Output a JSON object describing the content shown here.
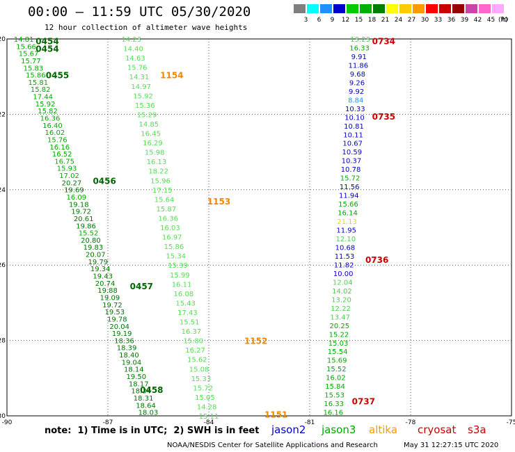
{
  "header": {
    "title": "00:00 – 11:59 UTC 05/30/2020",
    "subtitle": "12 hour collection of altimeter wave heights"
  },
  "scale": {
    "unit": "(ft)",
    "bins": [
      {
        "label": "3",
        "color": "#7f7f7f"
      },
      {
        "label": "6",
        "color": "#00ffff"
      },
      {
        "label": "9",
        "color": "#1e90ff"
      },
      {
        "label": "12",
        "color": "#0000cd"
      },
      {
        "label": "15",
        "color": "#00cc00"
      },
      {
        "label": "18",
        "color": "#00b000"
      },
      {
        "label": "21",
        "color": "#008000"
      },
      {
        "label": "24",
        "color": "#ffff00"
      },
      {
        "label": "27",
        "color": "#ffcc00"
      },
      {
        "label": "30",
        "color": "#ff9900"
      },
      {
        "label": "33",
        "color": "#ff0000"
      },
      {
        "label": "36",
        "color": "#cc0000"
      },
      {
        "label": "39",
        "color": "#990000"
      },
      {
        "label": "42",
        "color": "#cc44aa"
      },
      {
        "label": "45",
        "color": "#ff66cc"
      },
      {
        "label": "70",
        "color": "#ffaaff"
      }
    ]
  },
  "axes": {
    "xticks": [
      "-90",
      "-87",
      "-84",
      "-81",
      "-78",
      "-75"
    ],
    "yticks": [
      "-20",
      "-22",
      "-24",
      "-26",
      "-28",
      "-30"
    ]
  },
  "tracks": [
    {
      "satellite": "jason3",
      "color": "#00aa00",
      "lon_start": -89.5,
      "lat_start": -20.0,
      "lon_end": -85.8,
      "lat_end": -29.9,
      "values": [
        "14.81",
        "15.66",
        "15.67",
        "15.77",
        "15.83",
        "15.86",
        "15.81",
        "15.82",
        "17.44",
        "15.92",
        "15.82",
        "16.36",
        "16.40",
        "16.02",
        "15.76",
        "16.16",
        "16.52",
        "16.75",
        "15.93",
        "17.02",
        "20.27",
        "19.69",
        "16.09",
        "19.18",
        "19.72",
        "20.61",
        "19.86",
        "15.52",
        "20.80",
        "19.83",
        "20.07",
        "19.79",
        "19.34",
        "19.43",
        "20.74",
        "19.88",
        "19.09",
        "19.72",
        "19.53",
        "19.78",
        "20.04",
        "19.19",
        "18.36",
        "18.39",
        "18.40",
        "19.04",
        "18.14",
        "19.50",
        "18.17",
        "18.34",
        "18.31",
        "18.64",
        "18.03"
      ],
      "time_labels": [
        {
          "text": "0454",
          "lat": -20.05,
          "lon": -88.8
        },
        {
          "text": "0454",
          "lat": -20.25,
          "lon": -88.8
        },
        {
          "text": "0455",
          "lat": -20.95,
          "lon": -88.5
        },
        {
          "text": "0456",
          "lat": -23.75,
          "lon": -87.1
        },
        {
          "text": "0457",
          "lat": -26.55,
          "lon": -86.0
        },
        {
          "text": "0458",
          "lat": -29.3,
          "lon": -85.7
        }
      ]
    },
    {
      "satellite": "jason3",
      "color": "#55dd55",
      "lon_start": -86.3,
      "lat_start": -20.0,
      "lon_end": -84.0,
      "lat_end": -30.0,
      "values": [
        "14.23",
        "14.40",
        "14.63",
        "15.76",
        "14.31",
        "14.97",
        "15.92",
        "15.36",
        "15.29",
        "14.85",
        "16.45",
        "16.29",
        "15.98",
        "16.13",
        "18.22",
        "15.96",
        "17.15",
        "15.64",
        "15.87",
        "16.36",
        "16.03",
        "16.97",
        "15.86",
        "15.34",
        "15.39",
        "15.99",
        "16.11",
        "16.08",
        "15.43",
        "17.43",
        "15.51",
        "16.37",
        "15.80",
        "16.27",
        "15.62",
        "15.08",
        "15.33",
        "15.72",
        "15.05",
        "14.28",
        "15.11"
      ],
      "time_labels": [
        {
          "text": "1154",
          "lat": -20.95,
          "lon": -85.1
        },
        {
          "text": "1153",
          "lat": -24.3,
          "lon": -83.7
        },
        {
          "text": "1152",
          "lat": -28.0,
          "lon": -82.6
        },
        {
          "text": "1151",
          "lat": -29.95,
          "lon": -82.0
        }
      ]
    },
    {
      "satellite": "jason2",
      "color": "#0000cc",
      "lon_start": -79.5,
      "lat_start": -20.0,
      "lon_end": -80.3,
      "lat_end": -29.9,
      "values": [
        "13.23",
        "16.33",
        "9.91",
        "11.86",
        "9.68",
        "9.26",
        "9.92",
        "8.84",
        "10.33",
        "10.10",
        "10.81",
        "10.11",
        "10.67",
        "10.59",
        "10.37",
        "10.78",
        "15.72",
        "11.56",
        "11.94",
        "15.66",
        "16.14",
        "21.13",
        "11.95",
        "12.10",
        "10.68",
        "11.53",
        "11.82",
        "10.00",
        "12.04",
        "14.02",
        "13.20",
        "12.22",
        "13.47",
        "20.25",
        "15.22",
        "15.03",
        "15.54",
        "15.69",
        "15.52",
        "16.02",
        "15.84",
        "15.53",
        "16.33",
        "16.16"
      ],
      "time_labels": [
        {
          "text": "0734",
          "lat": -20.05,
          "lon": -78.8
        },
        {
          "text": "0735",
          "lat": -22.05,
          "lon": -78.8
        },
        {
          "text": "0736",
          "lat": -25.85,
          "lon": -79.0
        },
        {
          "text": "0737",
          "lat": -29.6,
          "lon": -79.4
        }
      ]
    }
  ],
  "legend": {
    "note": "note:  1) Time is in UTC;  2) SWH is in feet",
    "satellites": [
      {
        "name": "jason2",
        "color": "#0000cc"
      },
      {
        "name": "jason3",
        "color": "#00aa00"
      },
      {
        "name": "altika",
        "color": "#ff9900"
      },
      {
        "name": "cryosat",
        "color": "#cc0000"
      },
      {
        "name": "s3a",
        "color": "#cc0000"
      }
    ]
  },
  "footer": {
    "org": "NOAA/NESDIS Center for Satellite Applications and Research",
    "timestamp": "May 31 12:27:15 UTC 2020"
  }
}
